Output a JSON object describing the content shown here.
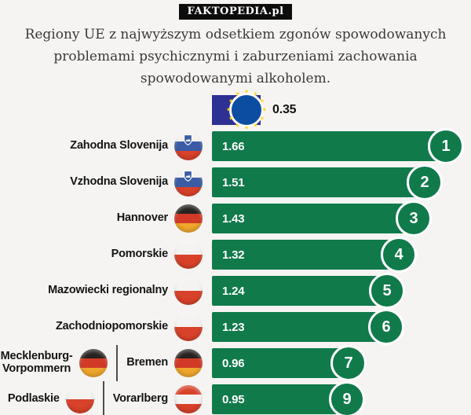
{
  "badge": "FAKTOPEDIA.pl",
  "title_lines": [
    "Regiony UE z najwyższym odsetkiem zgonów spowodowanych",
    "problemami psychicznymi i zaburzeniami zachowania",
    "spowodowanymi alkoholem."
  ],
  "colors": {
    "background": "#f5f4f2",
    "bar_green": "#107a4b",
    "eu_bar_blue": "#2e3192",
    "eu_emblem_blue": "#0c4da2",
    "star_yellow": "#ffd617",
    "label_black": "#141414",
    "value_white": "#ffffff"
  },
  "chart_data": {
    "type": "bar",
    "orientation": "horizontal",
    "title": "Regiony UE z najwyższym odsetkiem zgonów spowodowanych problemami psychicznymi i zaburzeniami zachowania spowodowanymi alkoholem.",
    "value_labels_inside_bars": true,
    "legend": "none",
    "axes": "none",
    "scale_max": 1.66,
    "baseline": {
      "label": "UE",
      "flag": "eu",
      "value": 0.35
    },
    "rows": [
      {
        "labels": [
          {
            "text": "Zahodna Slovenija",
            "flag": "si"
          }
        ],
        "value": 1.66,
        "rank": "1"
      },
      {
        "labels": [
          {
            "text": "Vzhodna Slovenija",
            "flag": "si"
          }
        ],
        "value": 1.51,
        "rank": "2"
      },
      {
        "labels": [
          {
            "text": "Hannover",
            "flag": "de"
          }
        ],
        "value": 1.43,
        "rank": "3"
      },
      {
        "labels": [
          {
            "text": "Pomorskie",
            "flag": "pl"
          }
        ],
        "value": 1.32,
        "rank": "4"
      },
      {
        "labels": [
          {
            "text": "Mazowiecki regionalny",
            "flag": "pl"
          }
        ],
        "value": 1.24,
        "rank": "5"
      },
      {
        "labels": [
          {
            "text": "Zachodniopomorskie",
            "flag": "pl"
          }
        ],
        "value": 1.23,
        "rank": "6"
      },
      {
        "labels": [
          {
            "text": "Mecklenburg-Vorpommern",
            "flag": "de"
          },
          {
            "text": "Bremen",
            "flag": "de"
          }
        ],
        "value": 0.96,
        "rank": "7"
      },
      {
        "labels": [
          {
            "text": "Podlaskie",
            "flag": "pl"
          },
          {
            "text": "Vorarlberg",
            "flag": "at"
          }
        ],
        "value": 0.95,
        "rank": "9"
      }
    ]
  }
}
